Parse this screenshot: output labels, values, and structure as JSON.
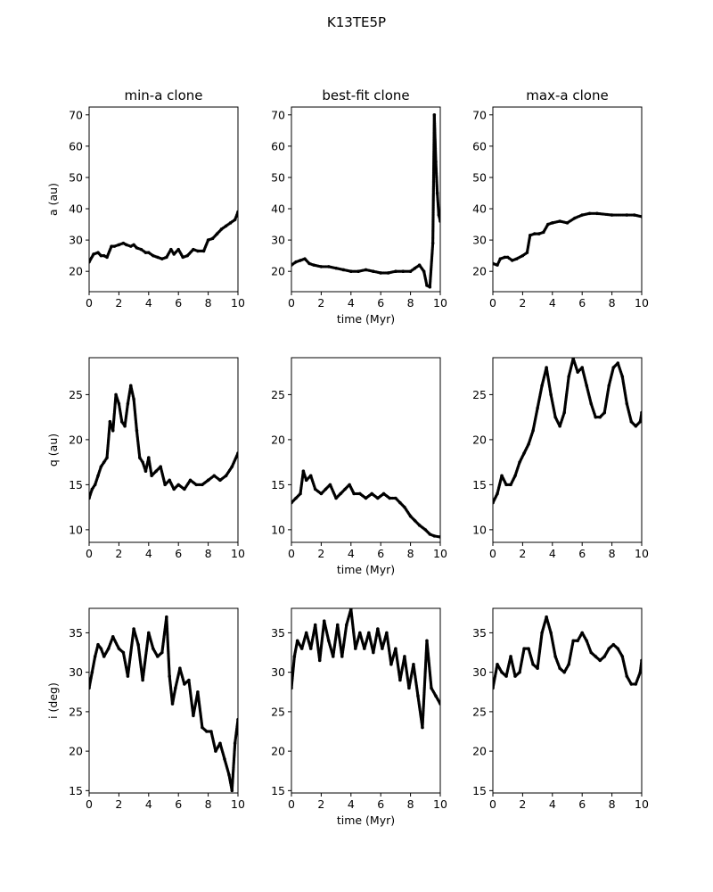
{
  "figure": {
    "title": "K13TE5P"
  },
  "chart_data": [
    {
      "type": "scatter",
      "title": "min-a clone",
      "xlabel": "",
      "ylabel": "a (au)",
      "xlim": [
        0,
        10
      ],
      "ylim": [
        13.5,
        72.5
      ],
      "xticks": [
        0,
        2,
        4,
        6,
        8,
        10
      ],
      "yticks": [
        20,
        30,
        40,
        50,
        60,
        70
      ],
      "series": [
        {
          "x": [
            0,
            0.3,
            0.6,
            0.8,
            1.0,
            1.2,
            1.5,
            1.7,
            2.0,
            2.3,
            2.5,
            2.8,
            3.0,
            3.2,
            3.5,
            3.8,
            4.0,
            4.3,
            4.6,
            4.9,
            5.2,
            5.5,
            5.7,
            6.0,
            6.3,
            6.6,
            7.0,
            7.3,
            7.7,
            8.0,
            8.3,
            8.6,
            8.9,
            9.2,
            9.5,
            9.8,
            10.0
          ],
          "y": [
            23,
            25.5,
            26,
            25,
            25,
            24.5,
            28,
            28,
            28.5,
            29,
            28.5,
            28,
            28.5,
            27.5,
            27,
            26,
            26,
            25,
            24.5,
            24,
            24.5,
            27,
            25.5,
            27,
            24.5,
            25,
            27,
            26.5,
            26.5,
            30,
            30.5,
            32,
            33.5,
            34.5,
            35.5,
            36.5,
            39
          ]
        }
      ]
    },
    {
      "type": "scatter",
      "title": "best-fit clone",
      "xlabel": "time (Myr)",
      "ylabel": "",
      "xlim": [
        0,
        10
      ],
      "ylim": [
        13.5,
        72.5
      ],
      "xticks": [
        0,
        2,
        4,
        6,
        8,
        10
      ],
      "yticks": [
        20,
        30,
        40,
        50,
        60,
        70
      ],
      "series": [
        {
          "x": [
            0,
            0.3,
            0.6,
            0.9,
            1.2,
            1.5,
            2.0,
            2.5,
            3.0,
            3.5,
            4.0,
            4.5,
            5.0,
            5.5,
            6.0,
            6.5,
            7.0,
            7.5,
            8.0,
            8.3,
            8.6,
            8.9,
            9.1,
            9.3,
            9.5,
            9.6,
            9.7,
            9.8,
            9.9,
            10.0
          ],
          "y": [
            22,
            23,
            23.5,
            24,
            22.5,
            22,
            21.5,
            21.5,
            21,
            20.5,
            20,
            20,
            20.5,
            20,
            19.5,
            19.5,
            20,
            20,
            20,
            21,
            22,
            20,
            15.5,
            15,
            29,
            70,
            55,
            45,
            38,
            36
          ]
        }
      ]
    },
    {
      "type": "scatter",
      "title": "max-a clone",
      "xlabel": "",
      "ylabel": "",
      "xlim": [
        0,
        10
      ],
      "ylim": [
        13.5,
        72.5
      ],
      "xticks": [
        0,
        2,
        4,
        6,
        8,
        10
      ],
      "yticks": [
        20,
        30,
        40,
        50,
        60,
        70
      ],
      "series": [
        {
          "x": [
            0,
            0.3,
            0.5,
            0.8,
            1.0,
            1.3,
            1.6,
            2.0,
            2.3,
            2.5,
            2.8,
            3.1,
            3.4,
            3.7,
            4.0,
            4.5,
            5.0,
            5.5,
            6.0,
            6.5,
            7.0,
            8.0,
            9.0,
            9.5,
            10.0
          ],
          "y": [
            22.5,
            22,
            24,
            24.5,
            24.5,
            23.5,
            24,
            25,
            26,
            31.5,
            32,
            32,
            32.5,
            35,
            35.5,
            36,
            35.5,
            37,
            38,
            38.5,
            38.5,
            38,
            38,
            38,
            37.5
          ]
        }
      ]
    },
    {
      "type": "scatter",
      "title": "",
      "xlabel": "",
      "ylabel": "q (au)",
      "xlim": [
        0,
        10
      ],
      "ylim": [
        8.6,
        29.1
      ],
      "xticks": [
        0,
        2,
        4,
        6,
        8,
        10
      ],
      "yticks": [
        10,
        15,
        20,
        25
      ],
      "series": [
        {
          "x": [
            0,
            0.2,
            0.4,
            0.6,
            0.8,
            1.0,
            1.2,
            1.4,
            1.6,
            1.8,
            2.0,
            2.2,
            2.4,
            2.6,
            2.8,
            3.0,
            3.2,
            3.4,
            3.6,
            3.8,
            4.0,
            4.2,
            4.5,
            4.8,
            5.1,
            5.4,
            5.7,
            6.0,
            6.4,
            6.8,
            7.2,
            7.6,
            8.0,
            8.4,
            8.8,
            9.2,
            9.6,
            10.0
          ],
          "y": [
            13.5,
            14.5,
            15,
            16,
            17,
            17.5,
            18,
            22,
            21,
            25,
            24,
            22,
            21.5,
            24,
            26,
            24.5,
            21,
            18,
            17.5,
            16.5,
            18,
            16,
            16.5,
            17,
            15,
            15.5,
            14.5,
            15,
            14.5,
            15.5,
            15,
            15,
            15.5,
            16,
            15.5,
            16,
            17,
            18.5
          ]
        }
      ]
    },
    {
      "type": "scatter",
      "title": "",
      "xlabel": "time (Myr)",
      "ylabel": "",
      "xlim": [
        0,
        10
      ],
      "ylim": [
        8.6,
        29.1
      ],
      "xticks": [
        0,
        2,
        4,
        6,
        8,
        10
      ],
      "yticks": [
        10,
        15,
        20,
        25
      ],
      "series": [
        {
          "x": [
            0,
            0.3,
            0.6,
            0.8,
            1.0,
            1.3,
            1.6,
            2.0,
            2.3,
            2.6,
            3.0,
            3.3,
            3.6,
            3.9,
            4.2,
            4.6,
            5.0,
            5.4,
            5.8,
            6.2,
            6.6,
            7.0,
            7.3,
            7.6,
            8.0,
            8.3,
            8.6,
            9.0,
            9.3,
            9.6,
            10.0
          ],
          "y": [
            13,
            13.5,
            14,
            16.5,
            15.5,
            16,
            14.5,
            14,
            14.5,
            15,
            13.5,
            14,
            14.5,
            15,
            14,
            14,
            13.5,
            14,
            13.5,
            14,
            13.5,
            13.5,
            13,
            12.5,
            11.5,
            11,
            10.5,
            10,
            9.5,
            9.3,
            9.2
          ]
        }
      ]
    },
    {
      "type": "scatter",
      "title": "",
      "xlabel": "",
      "ylabel": "",
      "xlim": [
        0,
        10
      ],
      "ylim": [
        8.6,
        29.1
      ],
      "xticks": [
        0,
        2,
        4,
        6,
        8,
        10
      ],
      "yticks": [
        10,
        15,
        20,
        25
      ],
      "series": [
        {
          "x": [
            0,
            0.3,
            0.6,
            0.9,
            1.2,
            1.5,
            1.8,
            2.1,
            2.4,
            2.7,
            3.0,
            3.3,
            3.6,
            3.9,
            4.2,
            4.5,
            4.8,
            5.1,
            5.4,
            5.7,
            6.0,
            6.3,
            6.6,
            6.9,
            7.2,
            7.5,
            7.8,
            8.1,
            8.4,
            8.7,
            9.0,
            9.3,
            9.6,
            9.9,
            10.0
          ],
          "y": [
            13,
            14,
            16,
            15,
            15,
            16,
            17.5,
            18.5,
            19.5,
            21,
            23.5,
            26,
            28,
            25,
            22.5,
            21.5,
            23,
            27,
            29,
            27.5,
            28,
            26,
            24,
            22.5,
            22.5,
            23,
            26,
            28,
            28.5,
            27,
            24,
            22,
            21.5,
            22,
            23
          ]
        }
      ]
    },
    {
      "type": "scatter",
      "title": "",
      "xlabel": "",
      "ylabel": "i (deg)",
      "xlim": [
        0,
        10
      ],
      "ylim": [
        14.7,
        38.1
      ],
      "xticks": [
        0,
        2,
        4,
        6,
        8,
        10
      ],
      "yticks": [
        15,
        20,
        25,
        30,
        35
      ],
      "series": [
        {
          "x": [
            0,
            0.2,
            0.4,
            0.6,
            0.8,
            1.0,
            1.3,
            1.6,
            2.0,
            2.3,
            2.6,
            3.0,
            3.3,
            3.6,
            4.0,
            4.3,
            4.6,
            4.9,
            5.2,
            5.4,
            5.6,
            5.8,
            6.1,
            6.4,
            6.7,
            7.0,
            7.3,
            7.6,
            7.9,
            8.2,
            8.5,
            8.8,
            9.1,
            9.4,
            9.6,
            9.8,
            10.0
          ],
          "y": [
            28,
            30,
            32,
            33.5,
            33,
            32,
            33,
            34.5,
            33,
            32.5,
            29.5,
            35.5,
            33.5,
            29,
            35,
            33,
            32,
            32.5,
            37,
            29.5,
            26,
            28,
            30.5,
            28.5,
            29,
            24.5,
            27.5,
            23,
            22.5,
            22.5,
            20,
            21,
            19,
            17,
            15,
            21,
            24
          ]
        }
      ]
    },
    {
      "type": "scatter",
      "title": "",
      "xlabel": "time (Myr)",
      "ylabel": "",
      "xlim": [
        0,
        10
      ],
      "ylim": [
        14.7,
        38.1
      ],
      "xticks": [
        0,
        2,
        4,
        6,
        8,
        10
      ],
      "yticks": [
        15,
        20,
        25,
        30,
        35
      ],
      "series": [
        {
          "x": [
            0,
            0.2,
            0.4,
            0.7,
            1.0,
            1.3,
            1.6,
            1.9,
            2.2,
            2.5,
            2.8,
            3.1,
            3.4,
            3.7,
            4.0,
            4.3,
            4.6,
            4.9,
            5.2,
            5.5,
            5.8,
            6.1,
            6.4,
            6.7,
            7.0,
            7.3,
            7.6,
            7.9,
            8.2,
            8.5,
            8.8,
            9.1,
            9.4,
            9.7,
            10.0
          ],
          "y": [
            28,
            32,
            34,
            33,
            35,
            33,
            36,
            31.5,
            36.5,
            34,
            32,
            36,
            32,
            36,
            38,
            33,
            35,
            33,
            35,
            32.5,
            35.5,
            33,
            35,
            31,
            33,
            29,
            32,
            28,
            31,
            27,
            23,
            34,
            28,
            27,
            26
          ]
        }
      ]
    },
    {
      "type": "scatter",
      "title": "",
      "xlabel": "",
      "ylabel": "",
      "xlim": [
        0,
        10
      ],
      "ylim": [
        14.7,
        38.1
      ],
      "xticks": [
        0,
        2,
        4,
        6,
        8,
        10
      ],
      "yticks": [
        15,
        20,
        25,
        30,
        35
      ],
      "series": [
        {
          "x": [
            0,
            0.3,
            0.6,
            0.9,
            1.2,
            1.5,
            1.8,
            2.1,
            2.4,
            2.7,
            3.0,
            3.3,
            3.6,
            3.9,
            4.2,
            4.5,
            4.8,
            5.1,
            5.4,
            5.7,
            6.0,
            6.3,
            6.6,
            6.9,
            7.2,
            7.5,
            7.8,
            8.1,
            8.4,
            8.7,
            9.0,
            9.3,
            9.6,
            9.9,
            10.0
          ],
          "y": [
            28,
            31,
            30,
            29.5,
            32,
            29.5,
            30,
            33,
            33,
            31,
            30.5,
            35,
            37,
            35,
            32,
            30.5,
            30,
            31,
            34,
            34,
            35,
            34,
            32.5,
            32,
            31.5,
            32,
            33,
            33.5,
            33,
            32,
            29.5,
            28.5,
            28.5,
            30,
            31.5
          ]
        }
      ]
    }
  ]
}
